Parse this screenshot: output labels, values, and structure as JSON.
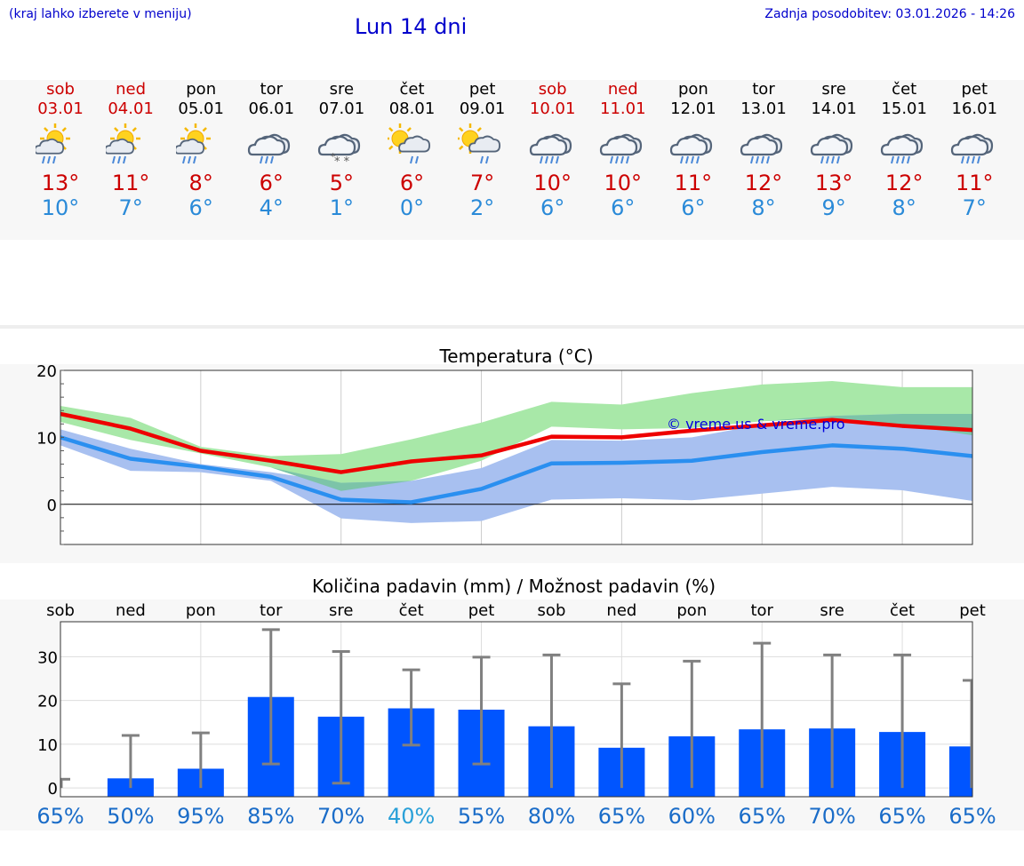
{
  "header": {
    "location_hint": "(kraj lahko izberete v meniju)",
    "title": "Lun 14 dni",
    "updated": "Zadnja posodobitev: 03.01.2026 - 14:26"
  },
  "days": [
    {
      "name": "sob",
      "date": "03.01",
      "weekend": true,
      "icon": "sun-cloud-rain-icon",
      "max": "13°",
      "min": "10°"
    },
    {
      "name": "ned",
      "date": "04.01",
      "weekend": true,
      "icon": "sun-cloud-rain-icon",
      "max": "11°",
      "min": "7°"
    },
    {
      "name": "pon",
      "date": "05.01",
      "weekend": false,
      "icon": "sun-cloud-rain-icon",
      "max": "8°",
      "min": "6°"
    },
    {
      "name": "tor",
      "date": "06.01",
      "weekend": false,
      "icon": "cloud-rain-icon",
      "max": "6°",
      "min": "4°"
    },
    {
      "name": "sre",
      "date": "07.01",
      "weekend": false,
      "icon": "cloud-snow-icon",
      "max": "5°",
      "min": "1°"
    },
    {
      "name": "čet",
      "date": "08.01",
      "weekend": false,
      "icon": "sun-cloud-light-rain-icon",
      "max": "6°",
      "min": "0°"
    },
    {
      "name": "pet",
      "date": "09.01",
      "weekend": false,
      "icon": "sun-cloud-light-rain-icon",
      "max": "7°",
      "min": "2°"
    },
    {
      "name": "sob",
      "date": "10.01",
      "weekend": true,
      "icon": "cloud-heavy-rain-icon",
      "max": "10°",
      "min": "6°"
    },
    {
      "name": "ned",
      "date": "11.01",
      "weekend": true,
      "icon": "cloud-heavy-rain-icon",
      "max": "10°",
      "min": "6°"
    },
    {
      "name": "pon",
      "date": "12.01",
      "weekend": false,
      "icon": "cloud-heavy-rain-icon",
      "max": "11°",
      "min": "6°"
    },
    {
      "name": "tor",
      "date": "13.01",
      "weekend": false,
      "icon": "cloud-heavy-rain-icon",
      "max": "12°",
      "min": "8°"
    },
    {
      "name": "sre",
      "date": "14.01",
      "weekend": false,
      "icon": "cloud-heavy-rain-icon",
      "max": "13°",
      "min": "9°"
    },
    {
      "name": "čet",
      "date": "15.01",
      "weekend": false,
      "icon": "cloud-heavy-rain-icon",
      "max": "12°",
      "min": "8°"
    },
    {
      "name": "pet",
      "date": "16.01",
      "weekend": false,
      "icon": "cloud-heavy-rain-icon",
      "max": "11°",
      "min": "7°"
    }
  ],
  "colors": {
    "max_temp": "#ee0000",
    "min_temp": "#2a8ff0",
    "band_green": "#a8e8a8",
    "band_blue": "#a8c0f0",
    "band_overlap": "#7cc4a8",
    "precip_bar": "#0055ff",
    "error_bar": "#808080",
    "chance_normal": "#1a6cc8",
    "chance_low": "#2aa0d8"
  },
  "chart_data": [
    {
      "type": "line",
      "title": "Temperatura (°C)",
      "watermark": "© vreme.us & vreme.pro",
      "ylim": [
        -6,
        20
      ],
      "yticks": [
        "20",
        "10",
        "0"
      ],
      "ytick_values": [
        20,
        10,
        0
      ],
      "x": [
        0,
        1,
        2,
        3,
        4,
        5,
        6,
        7,
        8,
        9,
        10,
        11,
        12,
        13
      ],
      "series": [
        {
          "name": "max",
          "values": [
            13.5,
            11.3,
            8.0,
            6.5,
            4.8,
            6.4,
            7.3,
            10.1,
            10.0,
            11.0,
            11.8,
            12.6,
            11.7,
            11.1
          ]
        },
        {
          "name": "min",
          "values": [
            10.0,
            6.8,
            5.6,
            4.1,
            0.7,
            0.3,
            2.3,
            6.1,
            6.2,
            6.5,
            7.8,
            8.8,
            8.3,
            7.2
          ]
        }
      ],
      "max_range": {
        "upper": [
          14.7,
          12.9,
          8.6,
          7.2,
          7.5,
          9.7,
          12.2,
          15.3,
          14.9,
          16.6,
          17.9,
          18.4,
          17.5,
          17.5
        ],
        "lower": [
          12.3,
          9.6,
          7.6,
          5.5,
          2.0,
          3.5,
          6.5,
          11.6,
          11.2,
          11.4,
          12.4,
          12.9,
          11.9,
          10.3
        ]
      },
      "min_range": {
        "upper": [
          11.2,
          8.3,
          6.0,
          4.8,
          3.2,
          3.5,
          5.4,
          9.6,
          9.5,
          10.0,
          11.9,
          13.2,
          13.5,
          13.5
        ],
        "lower": [
          8.8,
          5.0,
          4.8,
          3.5,
          -2.1,
          -2.8,
          -2.5,
          0.7,
          0.9,
          0.6,
          1.6,
          2.6,
          2.1,
          0.5
        ]
      }
    },
    {
      "type": "bar",
      "title": "Količina padavin (mm) / Možnost padavin (%)",
      "ylim": [
        -2,
        38
      ],
      "yticks": [
        "30",
        "20",
        "10",
        "0"
      ],
      "ytick_values": [
        30,
        20,
        10,
        0
      ],
      "categories": [
        "sob",
        "ned",
        "pon",
        "tor",
        "sre",
        "čet",
        "pet",
        "sob",
        "ned",
        "pon",
        "tor",
        "sre",
        "čet",
        "pet"
      ],
      "values": [
        0,
        2.2,
        4.4,
        20.8,
        16.3,
        18.2,
        17.9,
        14.1,
        9.2,
        11.8,
        13.4,
        13.6,
        12.8,
        9.5
      ],
      "error_low": [
        0,
        0,
        0,
        5.5,
        1.1,
        9.8,
        5.5,
        0,
        0,
        0,
        0,
        0,
        0,
        0
      ],
      "error_high": [
        2.0,
        12.0,
        12.6,
        36.2,
        31.2,
        27.0,
        29.9,
        30.4,
        23.8,
        29.0,
        33.1,
        30.4,
        30.4,
        24.6
      ],
      "chance": [
        "65%",
        "50%",
        "95%",
        "85%",
        "70%",
        "40%",
        "55%",
        "80%",
        "65%",
        "60%",
        "65%",
        "70%",
        "65%",
        "65%"
      ]
    }
  ]
}
